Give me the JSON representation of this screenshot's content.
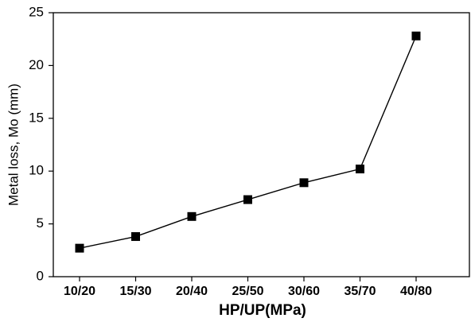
{
  "chart_data": {
    "type": "line",
    "x_label": "HP/UP(MPa)",
    "y_label": "Metal loss, Mo (mm)",
    "categories": [
      "10/20",
      "15/30",
      "20/40",
      "25/50",
      "30/60",
      "35/70",
      "40/80"
    ],
    "values": [
      2.7,
      3.8,
      5.7,
      7.3,
      8.9,
      10.2,
      22.8
    ],
    "color": "#000000",
    "ylim": [
      0,
      25
    ],
    "yticks": [
      0,
      5,
      10,
      15,
      20,
      25
    ]
  }
}
